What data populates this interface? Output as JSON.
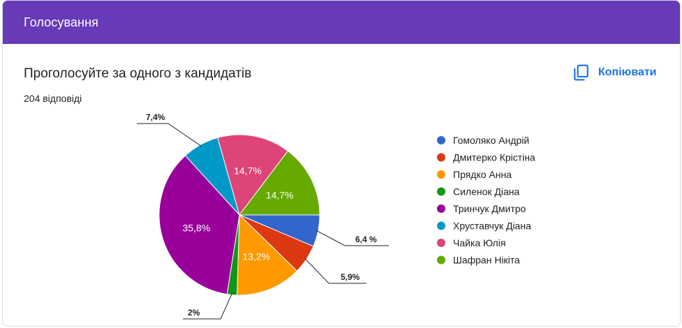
{
  "header": {
    "title": "Голосування"
  },
  "question": {
    "title": "Проголосуйте за одного з кандидатів",
    "responses": "204 відповіді"
  },
  "toolbar": {
    "copy_label": "Копіювати",
    "copy_icon": "copy-icon"
  },
  "colors": {
    "header": "#673ab7",
    "accent": "#1a73e8"
  },
  "chart_data": {
    "type": "pie",
    "start_angle_deg": 90,
    "direction": "clockwise",
    "legend_position": "right",
    "slices": [
      {
        "name": "Гомоляко Андрій",
        "value": 6.4,
        "label": "6,4 %",
        "color": "#3366cc",
        "label_outside": true
      },
      {
        "name": "Дмитерко Крістіна",
        "value": 5.9,
        "label": "5,9%",
        "color": "#dc3912",
        "label_outside": true
      },
      {
        "name": "Прядко Анна",
        "value": 13.2,
        "label": "13,2%",
        "color": "#ff9900",
        "label_outside": false
      },
      {
        "name": "Силенок Діана",
        "value": 2.0,
        "label": "2%",
        "color": "#109618",
        "label_outside": true
      },
      {
        "name": "Тринчук Дмитро",
        "value": 35.8,
        "label": "35,8%",
        "color": "#990099",
        "label_outside": false
      },
      {
        "name": "Хруставчук Діана",
        "value": 7.4,
        "label": "7,4%",
        "color": "#0099c6",
        "label_outside": true
      },
      {
        "name": "Чайка Юлія",
        "value": 14.7,
        "label": "14,7%",
        "color": "#dd4477",
        "label_outside": false
      },
      {
        "name": "Шафран Нікіта",
        "value": 14.7,
        "label": "14,7%",
        "color": "#66aa00",
        "label_outside": false
      }
    ]
  }
}
